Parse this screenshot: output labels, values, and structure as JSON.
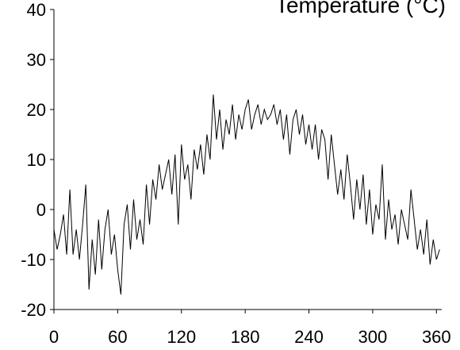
{
  "chart_data": {
    "type": "line",
    "title": "Temperature (°C)",
    "x": [
      0,
      3,
      6,
      9,
      12,
      15,
      18,
      21,
      24,
      27,
      30,
      33,
      36,
      39,
      42,
      45,
      48,
      51,
      54,
      57,
      60,
      63,
      66,
      69,
      72,
      75,
      78,
      81,
      84,
      87,
      90,
      93,
      96,
      99,
      102,
      105,
      108,
      111,
      114,
      117,
      120,
      123,
      126,
      129,
      132,
      135,
      138,
      141,
      144,
      147,
      150,
      153,
      156,
      159,
      162,
      165,
      168,
      171,
      174,
      177,
      180,
      183,
      186,
      189,
      192,
      195,
      198,
      201,
      204,
      207,
      210,
      213,
      216,
      219,
      222,
      225,
      228,
      231,
      234,
      237,
      240,
      243,
      246,
      249,
      252,
      255,
      258,
      261,
      264,
      267,
      270,
      273,
      276,
      279,
      282,
      285,
      288,
      291,
      294,
      297,
      300,
      303,
      306,
      309,
      312,
      315,
      318,
      321,
      324,
      327,
      330,
      333,
      336,
      339,
      342,
      345,
      348,
      351,
      354,
      357,
      360,
      363
    ],
    "values": [
      -4,
      -8,
      -5,
      -1,
      -9,
      4,
      -9,
      -4,
      -10,
      -3,
      5,
      -16,
      -6,
      -13,
      -2,
      -12,
      -4,
      0,
      -9,
      -5,
      -12,
      -17,
      -3,
      1,
      -8,
      2,
      -6,
      -2,
      -7,
      5,
      -3,
      6,
      2,
      9,
      4,
      7,
      10,
      3,
      11,
      -3,
      13,
      6,
      9,
      2,
      12,
      8,
      13,
      7,
      15,
      10,
      23,
      14,
      20,
      12,
      18,
      15,
      21,
      14,
      19,
      16,
      20,
      22,
      16,
      19,
      21,
      17,
      20,
      18,
      19,
      21,
      17,
      20,
      14,
      19,
      11,
      18,
      20,
      15,
      19,
      13,
      17,
      12,
      17,
      10,
      16,
      14,
      6,
      15,
      9,
      3,
      8,
      2,
      11,
      5,
      -2,
      6,
      0,
      7,
      -3,
      4,
      -5,
      1,
      -2,
      9,
      -6,
      2,
      -4,
      -1,
      -7,
      0,
      -3,
      -6,
      4,
      -2,
      -8,
      -4,
      -9,
      -2,
      -11,
      -6,
      -10,
      -8
    ],
    "color": "#000000",
    "xlim": [
      0,
      365
    ],
    "xticks": [
      0,
      60,
      120,
      180,
      240,
      300,
      360
    ],
    "ylim": [
      -20,
      40
    ],
    "yticks": [
      -20,
      -10,
      0,
      10,
      20,
      30,
      40
    ]
  }
}
